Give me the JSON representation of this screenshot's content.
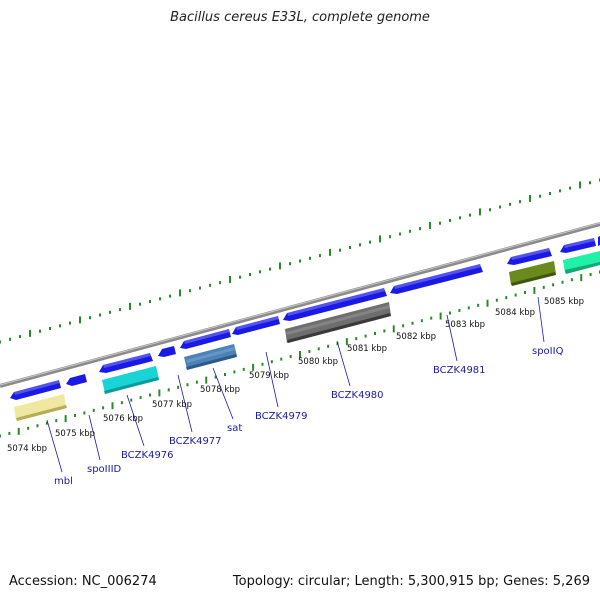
{
  "title": "Bacillus cereus E33L, complete genome",
  "footer": {
    "accession": "Accession: NC_006274",
    "summary": "Topology: circular; Length: 5,300,915 bp; Genes: 5,269"
  },
  "colors": {
    "backbone": "#8a8a8a",
    "tick": "#2a8a2a",
    "cds": "#1a1ae6",
    "label": "#1a1aa8"
  },
  "kbp_ticks": [
    "5074 kbp",
    "5075 kbp",
    "5076 kbp",
    "5077 kbp",
    "5078 kbp",
    "5079 kbp",
    "5080 kbp",
    "5081 kbp",
    "5082 kbp",
    "5083 kbp",
    "5084 kbp",
    "5085 kbp"
  ],
  "gene_labels": [
    "mbl",
    "spoIIID",
    "BCZK4976",
    "BCZK4977",
    "sat",
    "BCZK4979",
    "BCZK4980",
    "BCZK4981",
    "spoIIQ"
  ]
}
